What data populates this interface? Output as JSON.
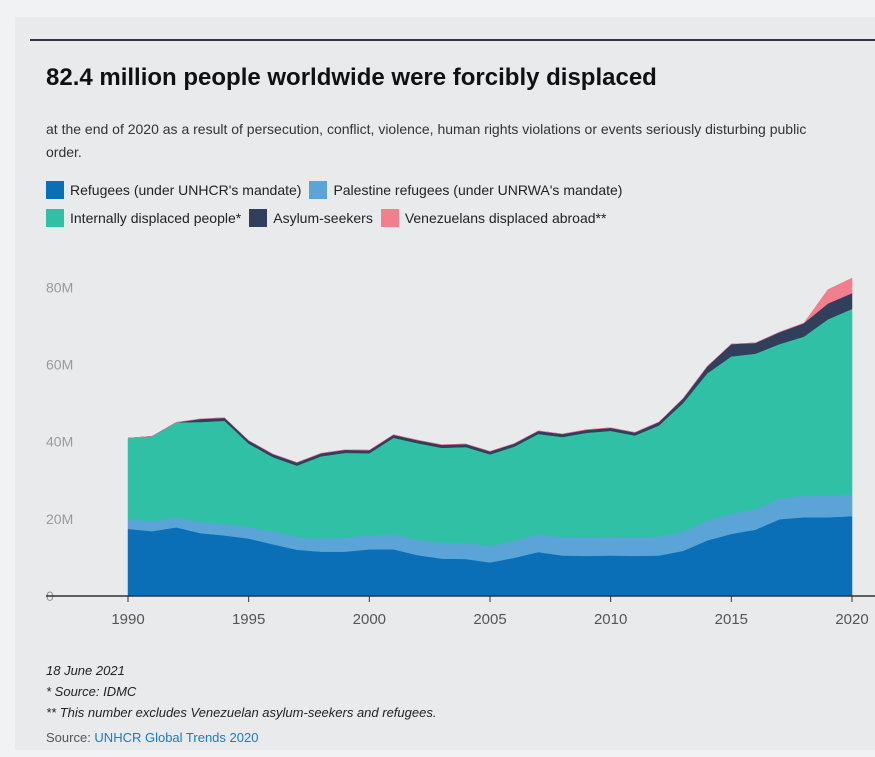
{
  "title": "82.4 million people worldwide were forcibly displaced",
  "subtitle": "at the end of 2020 as a result of persecution, conflict, violence, human rights violations or events seriously disturbing public order.",
  "legend": [
    {
      "label": "Refugees (under UNHCR's mandate)",
      "color": "#0b6fb8"
    },
    {
      "label": "Palestine refugees (under UNRWA's mandate)",
      "color": "#5aa4d8"
    },
    {
      "label": "Internally displaced people*",
      "color": "#30c0a6"
    },
    {
      "label": "Asylum-seekers",
      "color": "#323f5c"
    },
    {
      "label": "Venezuelans displaced abroad**",
      "color": "#f27f8e"
    }
  ],
  "notes": {
    "date": "18 June 2021",
    "source_idmc": "* Source: IDMC",
    "exclusion": "** This number excludes Venezuelan asylum-seekers and refugees."
  },
  "source": {
    "prefix": "Source: ",
    "link": "UNHCR Global Trends 2020"
  },
  "chart_data": {
    "type": "area",
    "stacked": true,
    "x": [
      1990,
      1991,
      1992,
      1993,
      1994,
      1995,
      1996,
      1997,
      1998,
      1999,
      2000,
      2001,
      2002,
      2003,
      2004,
      2005,
      2006,
      2007,
      2008,
      2009,
      2010,
      2011,
      2012,
      2013,
      2014,
      2015,
      2016,
      2017,
      2018,
      2019,
      2020
    ],
    "xticks": [
      1990,
      1995,
      2000,
      2005,
      2010,
      2015,
      2020
    ],
    "yticks": [
      0,
      20,
      40,
      60,
      80
    ],
    "ytick_labels": [
      "0",
      "20M",
      "40M",
      "60M",
      "80M"
    ],
    "ylim": [
      0,
      85
    ],
    "unit": "millions",
    "series": [
      {
        "name": "Refugees (under UNHCR's mandate)",
        "color": "#0b6fb8",
        "values": [
          17.4,
          16.8,
          17.8,
          16.3,
          15.7,
          14.9,
          13.4,
          12.0,
          11.5,
          11.5,
          12.1,
          12.1,
          10.6,
          9.7,
          9.6,
          8.7,
          9.9,
          11.4,
          10.5,
          10.4,
          10.5,
          10.4,
          10.5,
          11.7,
          14.4,
          16.1,
          17.2,
          19.9,
          20.4,
          20.4,
          20.7
        ]
      },
      {
        "name": "Palestine refugees (under UNRWA's mandate)",
        "color": "#5aa4d8",
        "values": [
          2.5,
          2.6,
          2.7,
          2.8,
          2.9,
          3.0,
          3.2,
          3.3,
          3.4,
          3.6,
          3.7,
          3.9,
          4.0,
          4.1,
          4.2,
          4.3,
          4.4,
          4.6,
          4.7,
          4.8,
          4.8,
          4.8,
          4.9,
          5.0,
          5.1,
          5.2,
          5.3,
          5.4,
          5.5,
          5.6,
          5.7
        ]
      },
      {
        "name": "Internally displaced people*",
        "color": "#30c0a6",
        "values": [
          21.0,
          22.0,
          24.5,
          26.0,
          26.8,
          21.6,
          19.4,
          18.5,
          21.3,
          22.0,
          21.2,
          25.0,
          25.0,
          24.6,
          24.8,
          23.7,
          24.4,
          26.0,
          26.0,
          27.1,
          27.5,
          26.4,
          28.8,
          33.3,
          38.2,
          40.8,
          40.3,
          40.0,
          41.3,
          45.7,
          48.0
        ]
      },
      {
        "name": "Asylum-seekers",
        "color": "#323f5c",
        "values": [
          0,
          0,
          0,
          0.8,
          0.8,
          0.8,
          0.8,
          0.8,
          0.8,
          0.8,
          0.8,
          0.8,
          0.8,
          0.8,
          0.8,
          0.8,
          0.8,
          0.8,
          0.8,
          0.8,
          0.8,
          0.8,
          0.9,
          1.2,
          1.8,
          3.2,
          2.8,
          3.1,
          3.5,
          4.1,
          4.1
        ]
      },
      {
        "name": "Venezuelans displaced abroad**",
        "color": "#f27f8e",
        "values": [
          0,
          0,
          0,
          0,
          0,
          0,
          0,
          0,
          0,
          0,
          0,
          0,
          0,
          0,
          0,
          0,
          0,
          0,
          0,
          0,
          0,
          0,
          0,
          0,
          0,
          0,
          0,
          0,
          0,
          3.6,
          3.9
        ]
      }
    ],
    "grid": false,
    "legend_position": "top"
  }
}
